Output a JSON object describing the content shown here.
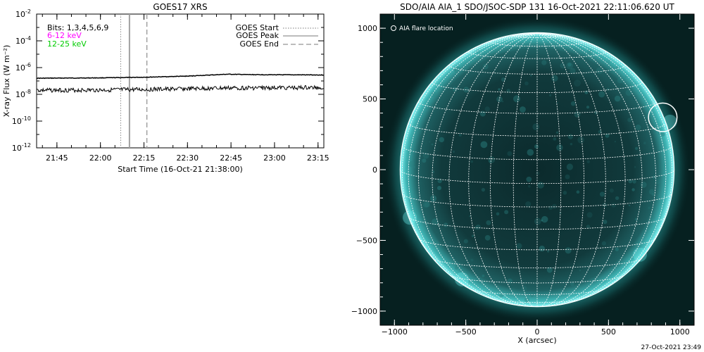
{
  "left_panel": {
    "title": "GOES17 XRS",
    "ylabel": "X-ray Flux (W m⁻²)",
    "xlabel": "Start Time (16-Oct-21 21:38:00)",
    "annotation_bits": "Bits: 1,3,4,5,6,9",
    "legend_low": "6-12 keV",
    "legend_high": "12-25 keV",
    "legend_start": "GOES Start",
    "legend_peak": "GOES Peak",
    "legend_end": "GOES End",
    "colors": {
      "low": "#ff00ff",
      "high": "#00cc00",
      "trace": "#000000",
      "marker": "#a0a0a0"
    }
  },
  "right_panel": {
    "title": "SDO/AIA AIA_1 SDO/JSOC-SDP 131 16-Oct-2021 22:11:06.620 UT",
    "legend_flare": "AIA flare location",
    "xlabel": "X (arcsec)",
    "colors": {
      "disk": "#0f3638",
      "limb": "#7fffff",
      "grid": "#ffffff",
      "background": "#062020"
    }
  },
  "footer": {
    "timestamp": "27-Oct-2021 23:49"
  },
  "chart_data": [
    {
      "type": "line",
      "title": "GOES17 XRS",
      "xlabel": "Start Time (16-Oct-21 21:38:00)",
      "ylabel": "X-ray Flux (W m⁻²)",
      "y_scale": "log",
      "ylim": [
        1e-12,
        0.01
      ],
      "xlim": [
        "21:38",
        "23:17"
      ],
      "x_ticks": [
        "21:45",
        "22:00",
        "22:15",
        "22:30",
        "22:45",
        "23:00",
        "23:15"
      ],
      "y_ticks": [
        {
          "value": 1e-12,
          "base": "10",
          "exp": "-12"
        },
        {
          "value": 1e-10,
          "base": "10",
          "exp": "-10"
        },
        {
          "value": 1e-08,
          "base": "10",
          "exp": "-8"
        },
        {
          "value": 1e-06,
          "base": "10",
          "exp": "-6"
        },
        {
          "value": 0.0001,
          "base": "10",
          "exp": "-4"
        },
        {
          "value": 0.01,
          "base": "10",
          "exp": "-2"
        }
      ],
      "series": [
        {
          "name": "6-12 keV",
          "x": [
            "21:38",
            "22:00",
            "22:15",
            "22:30",
            "22:44",
            "22:50",
            "23:00",
            "23:17"
          ],
          "y": [
            1.6e-07,
            1.7e-07,
            1.9e-07,
            2.3e-07,
            3.2e-07,
            3e-07,
            2.9e-07,
            2.8e-07
          ]
        },
        {
          "name": "12-25 keV",
          "x": [
            "21:38",
            "22:00",
            "22:15",
            "22:30",
            "22:45",
            "23:00",
            "23:17"
          ],
          "y": [
            2e-08,
            2.1e-08,
            2.3e-08,
            2.6e-08,
            3e-08,
            3.1e-08,
            3.2e-08
          ]
        }
      ],
      "markers": {
        "goes_start": "22:07",
        "goes_peak": "22:10",
        "goes_end": "22:16"
      }
    },
    {
      "type": "scatter",
      "title": "SDO/AIA AIA_1 SDO/JSOC-SDP 131 16-Oct-2021 22:11:06.620 UT",
      "xlabel": "X (arcsec)",
      "ylabel": "",
      "xlim": [
        -1100,
        1100
      ],
      "ylim": [
        -1100,
        1100
      ],
      "x_ticks": [
        -1000,
        -500,
        0,
        500,
        1000
      ],
      "y_ticks": [
        -1000,
        -500,
        0,
        500,
        1000
      ],
      "solar_radius_arcsec": 960,
      "grid_spacing_deg": 10,
      "flare_location": {
        "x": 880,
        "y": 370,
        "radius_arcsec": 100
      }
    }
  ]
}
